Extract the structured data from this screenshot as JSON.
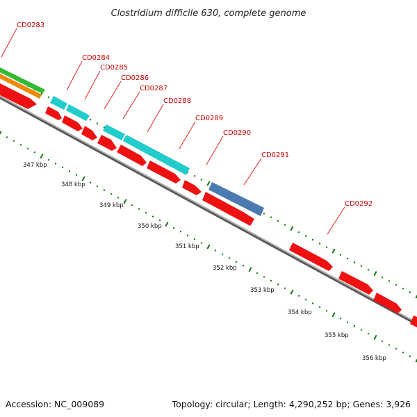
{
  "title": "Clostridium difficile 630, complete genome",
  "accession_label": "Accession: NC_009089",
  "summary_label": "Topology: circular; Length: 4,290,252 bp; Genes: 3,926",
  "genes": [
    {
      "id": "CD0283"
    },
    {
      "id": "CD0284"
    },
    {
      "id": "CD0285"
    },
    {
      "id": "CD0286"
    },
    {
      "id": "CD0287"
    },
    {
      "id": "CD0288"
    },
    {
      "id": "CD0289"
    },
    {
      "id": "CD0290"
    },
    {
      "id": "CD0291"
    },
    {
      "id": "CD0292"
    }
  ],
  "ticks": [
    "347 kbp",
    "348 kbp",
    "349 kbp",
    "350 kbp",
    "351 kbp",
    "352 kbp",
    "353 kbp",
    "354 kbp",
    "355 kbp",
    "356 kbp"
  ],
  "colors": {
    "cds": "#ee1111",
    "rna_cyan": "#22cccc",
    "steel": "#4a7ab0",
    "green": "#33bb33",
    "orange": "#ee8800",
    "backbone": "#888888",
    "dots": "#117711",
    "label": "#cc0000"
  }
}
